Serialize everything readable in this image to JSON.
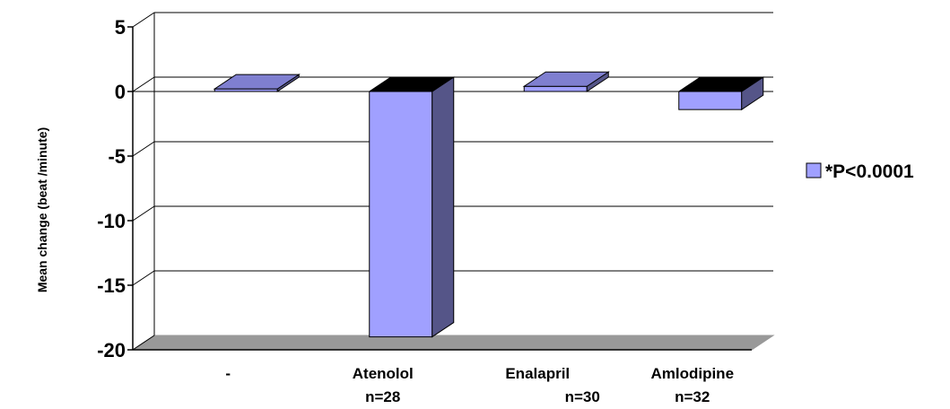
{
  "chart_data": {
    "type": "bar",
    "style": "3d-column",
    "title": "",
    "xlabel": "",
    "ylabel": "Mean change (beat /minute)",
    "ylim": [
      -20,
      5
    ],
    "yticks": [
      5,
      0,
      -5,
      -10,
      -15,
      -20
    ],
    "grid": true,
    "legend": {
      "position": "right",
      "entries": [
        "*P<0.0001"
      ]
    },
    "categories": [
      {
        "label": "-",
        "n": ""
      },
      {
        "label": "Atenolol",
        "n": "n=28"
      },
      {
        "label": "Enalapril",
        "n": "n=30"
      },
      {
        "label": "Amlodipine",
        "n": "n=32"
      }
    ],
    "series": [
      {
        "values": [
          0.2,
          -19,
          0.4,
          -1.4
        ]
      }
    ],
    "colors": {
      "bar_front": "#a0a0ff",
      "bar_side": "#555588",
      "bar_top_negative": "#000000",
      "bar_top_positive": "#7f7fd0",
      "floor": "#999999",
      "grid": "#000000"
    }
  }
}
